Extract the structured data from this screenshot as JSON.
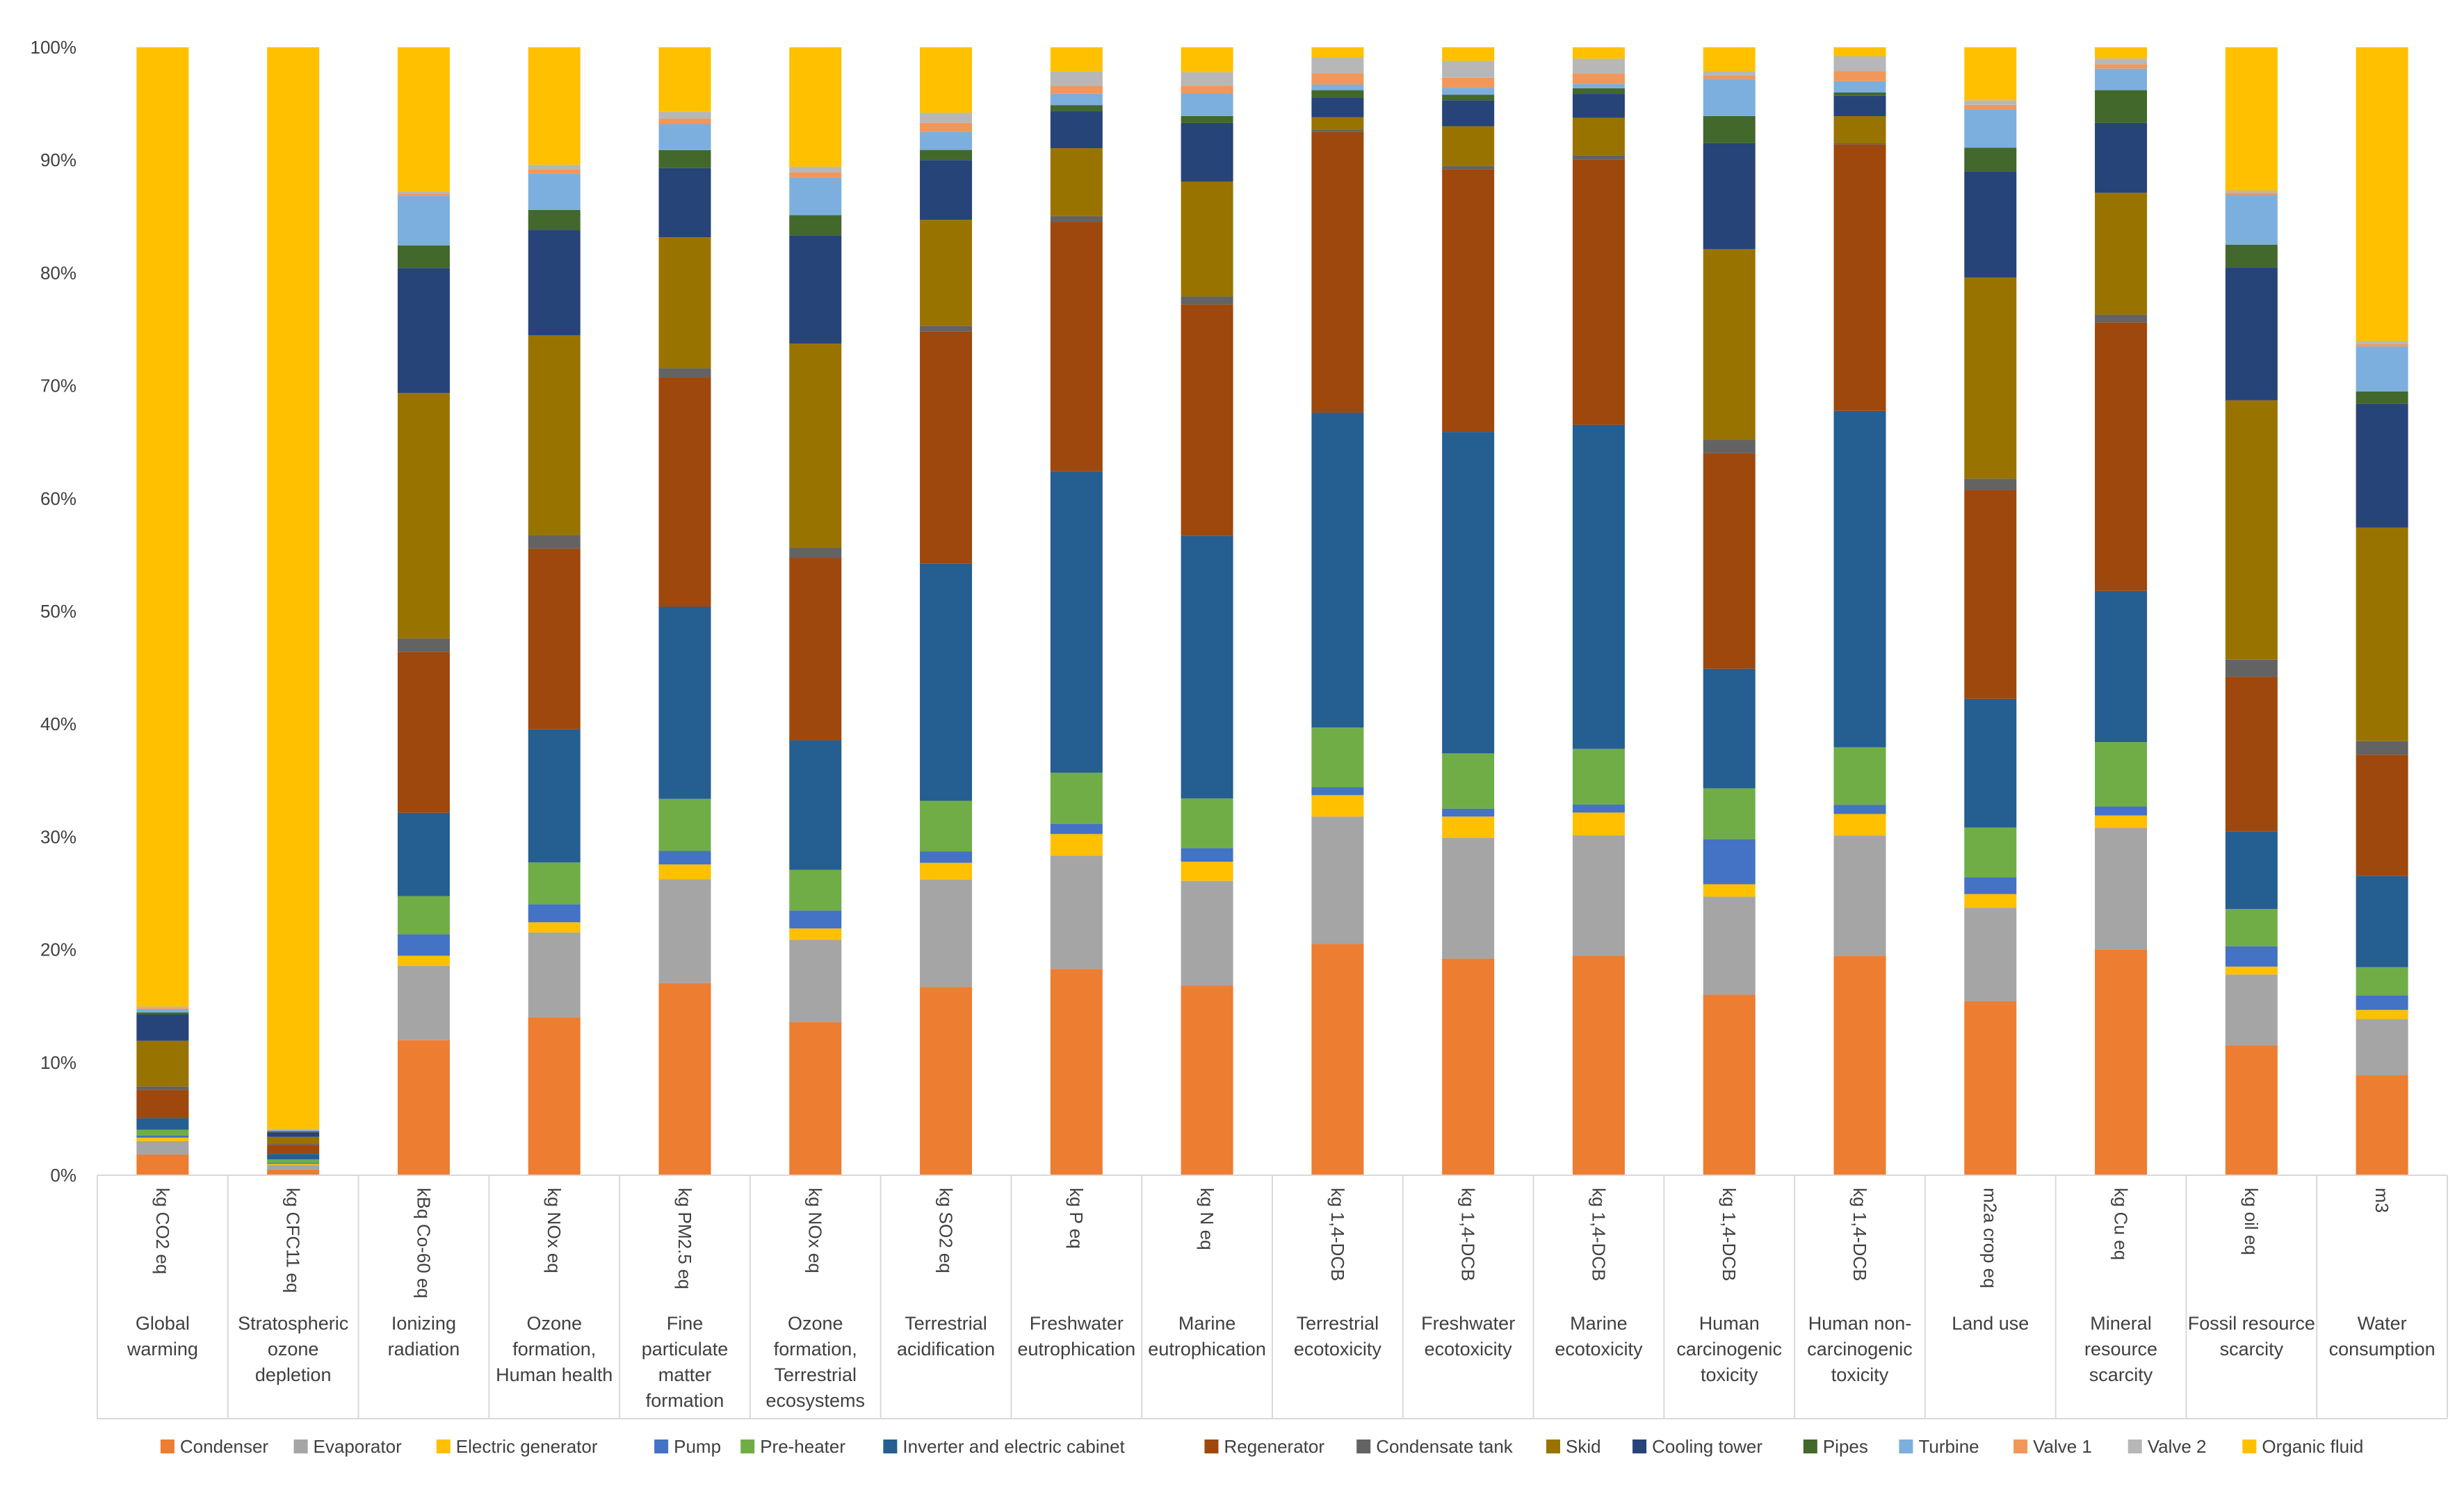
{
  "chart_data": {
    "type": "bar",
    "stacked": true,
    "percent": true,
    "title": "",
    "xlabel": "",
    "ylabel": "",
    "ylim": [
      0,
      100
    ],
    "y_ticks": [
      "0%",
      "10%",
      "20%",
      "30%",
      "40%",
      "50%",
      "60%",
      "70%",
      "80%",
      "90%",
      "100%"
    ],
    "grid": false,
    "legend_position": "bottom",
    "categories": [
      {
        "unit": "kg CO2 eq",
        "name": [
          "Global",
          "warming"
        ]
      },
      {
        "unit": "kg CFC11 eq",
        "name": [
          "Stratospheric",
          "ozone",
          "depletion"
        ]
      },
      {
        "unit": "kBq Co-60 eq",
        "name": [
          "Ionizing",
          "radiation"
        ]
      },
      {
        "unit": "kg NOx eq",
        "name": [
          "Ozone",
          "formation,",
          "Human health"
        ]
      },
      {
        "unit": "kg PM2.5 eq",
        "name": [
          "Fine",
          "particulate",
          "matter",
          "formation"
        ]
      },
      {
        "unit": "kg NOx eq",
        "name": [
          "Ozone",
          "formation,",
          "Terrestrial",
          "ecosystems"
        ]
      },
      {
        "unit": "kg SO2 eq",
        "name": [
          "Terrestrial",
          "acidification"
        ]
      },
      {
        "unit": "kg P eq",
        "name": [
          "Freshwater",
          "eutrophication"
        ]
      },
      {
        "unit": "kg N eq",
        "name": [
          "Marine",
          "eutrophication"
        ]
      },
      {
        "unit": "kg 1,4-DCB",
        "name": [
          "Terrestrial",
          "ecotoxicity"
        ]
      },
      {
        "unit": "kg 1,4-DCB",
        "name": [
          "Freshwater",
          "ecotoxicity"
        ]
      },
      {
        "unit": "kg 1,4-DCB",
        "name": [
          "Marine",
          "ecotoxicity"
        ]
      },
      {
        "unit": "kg 1,4-DCB",
        "name": [
          "Human",
          "carcinogenic",
          "toxicity"
        ]
      },
      {
        "unit": "kg 1,4-DCB",
        "name": [
          "Human non-",
          "carcinogenic",
          "toxicity"
        ]
      },
      {
        "unit": "m2a crop eq",
        "name": [
          "Land use"
        ]
      },
      {
        "unit": "kg Cu eq",
        "name": [
          "Mineral",
          "resource",
          "scarcity"
        ]
      },
      {
        "unit": "kg oil eq",
        "name": [
          "Fossil resource",
          "scarcity"
        ]
      },
      {
        "unit": "m3",
        "name": [
          "Water",
          "consumption"
        ]
      }
    ],
    "series": [
      {
        "name": "Condenser",
        "color": "#ED7D31",
        "values": [
          1.8,
          0.5,
          12.0,
          14.0,
          17.0,
          13.6,
          16.7,
          18.2,
          16.8,
          20.5,
          19.2,
          19.3,
          16.0,
          19.4,
          15.4,
          20.0,
          11.5,
          8.9
        ]
      },
      {
        "name": "Evaporator",
        "color": "#A5A5A5",
        "values": [
          1.2,
          0.4,
          6.6,
          7.5,
          9.2,
          7.3,
          9.5,
          10.0,
          9.3,
          11.3,
          10.7,
          10.6,
          8.7,
          10.7,
          8.3,
          10.8,
          6.3,
          5.0
        ]
      },
      {
        "name": "Electric generator",
        "color": "#FFC000",
        "values": [
          0.3,
          0.1,
          0.9,
          0.9,
          1.3,
          1.0,
          1.5,
          1.9,
          1.7,
          1.9,
          1.9,
          2.0,
          1.1,
          1.9,
          1.2,
          1.1,
          0.7,
          0.8
        ]
      },
      {
        "name": "Pump",
        "color": "#4472C4",
        "values": [
          0.2,
          0.1,
          1.9,
          1.6,
          1.2,
          1.6,
          1.0,
          0.9,
          1.2,
          0.7,
          0.7,
          0.7,
          4.0,
          0.8,
          1.5,
          0.8,
          1.8,
          1.3
        ]
      },
      {
        "name": "Pre-heater",
        "color": "#70AD47",
        "values": [
          0.5,
          0.3,
          3.4,
          3.7,
          4.6,
          3.6,
          4.5,
          4.5,
          4.4,
          5.3,
          4.9,
          4.9,
          4.5,
          5.1,
          4.4,
          5.7,
          3.3,
          2.5
        ]
      },
      {
        "name": "Inverter and electric cabinet",
        "color": "#255E91",
        "values": [
          1.0,
          0.5,
          7.4,
          11.8,
          17.0,
          11.5,
          21.0,
          26.6,
          23.3,
          27.9,
          28.5,
          28.5,
          10.6,
          29.8,
          11.4,
          13.4,
          6.9,
          8.1
        ]
      },
      {
        "name": "Regenerator",
        "color": "#9E480E",
        "values": [
          2.5,
          0.8,
          14.3,
          16.0,
          20.3,
          16.2,
          20.6,
          22.0,
          20.5,
          24.9,
          23.3,
          23.3,
          19.1,
          23.6,
          18.5,
          23.8,
          13.7,
          10.8
        ]
      },
      {
        "name": "Condensate tank",
        "color": "#636363",
        "values": [
          0.3,
          0.1,
          1.2,
          1.2,
          0.8,
          0.9,
          0.5,
          0.5,
          0.7,
          0.2,
          0.3,
          0.4,
          1.2,
          0.1,
          1.0,
          0.7,
          1.5,
          1.2
        ]
      },
      {
        "name": "Skid",
        "color": "#997300",
        "values": [
          4.0,
          0.6,
          21.8,
          17.7,
          11.6,
          18.1,
          9.4,
          6.0,
          10.2,
          1.1,
          3.5,
          3.3,
          16.9,
          2.4,
          17.8,
          10.8,
          23.0,
          19.0
        ]
      },
      {
        "name": "Cooling tower",
        "color": "#264478",
        "values": [
          2.3,
          0.4,
          11.1,
          9.3,
          6.1,
          9.6,
          5.3,
          3.3,
          5.2,
          1.7,
          2.3,
          2.1,
          9.4,
          1.8,
          9.4,
          6.2,
          11.8,
          11.0
        ]
      },
      {
        "name": "Pipes",
        "color": "#43682B",
        "values": [
          0.2,
          0.1,
          2.0,
          1.8,
          1.6,
          1.8,
          0.9,
          0.5,
          0.6,
          0.7,
          0.5,
          0.5,
          2.4,
          0.3,
          2.1,
          2.9,
          2.0,
          1.1
        ]
      },
      {
        "name": "Turbine",
        "color": "#7CAFDD",
        "values": [
          0.3,
          0.1,
          4.4,
          3.2,
          2.3,
          3.3,
          1.6,
          1.0,
          2.0,
          0.5,
          0.6,
          0.4,
          3.3,
          1.0,
          3.4,
          1.9,
          4.4,
          4.0
        ]
      },
      {
        "name": "Valve 1",
        "color": "#F1975A",
        "values": [
          0.1,
          0.05,
          0.2,
          0.4,
          0.5,
          0.5,
          0.8,
          0.7,
          0.7,
          1.0,
          0.9,
          0.9,
          0.3,
          0.9,
          0.4,
          0.4,
          0.2,
          0.2
        ]
      },
      {
        "name": "Valve 2",
        "color": "#B7B7B7",
        "values": [
          0.1,
          0.05,
          0.2,
          0.4,
          0.6,
          0.5,
          0.9,
          1.3,
          1.2,
          1.4,
          1.5,
          1.3,
          0.4,
          1.3,
          0.4,
          0.5,
          0.2,
          0.3
        ]
      },
      {
        "name": "Organic fluid",
        "color": "#FFC000",
        "values": [
          84.2,
          95.8,
          12.8,
          10.4,
          5.7,
          10.6,
          5.8,
          2.1,
          2.2,
          0.9,
          1.2,
          1.0,
          2.1,
          0.8,
          4.7,
          1.0,
          12.7,
          26.1
        ]
      }
    ]
  }
}
